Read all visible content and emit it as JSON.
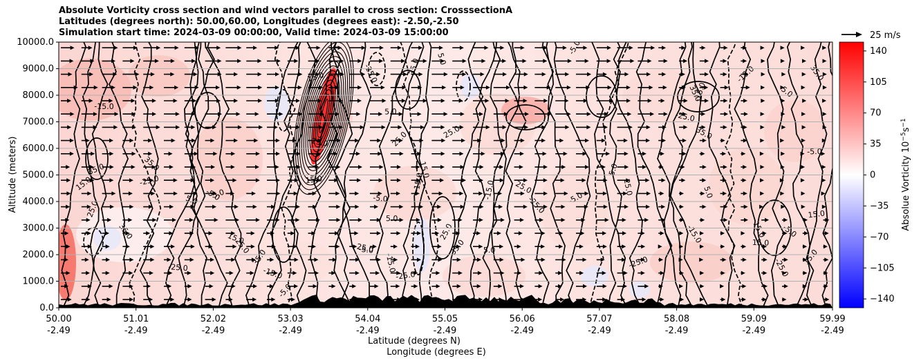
{
  "chart_data": {
    "type": "heatmap",
    "title_lines": [
      "Absolute Vorticity cross section and wind vectors parallel to cross section: CrosssectionA",
      "Latitudes (degrees north): 50.00,60.00, Longitudes (degrees east): -2.50,-2.50",
      "Simulation start time: 2024-03-09 00:00:00, Valid time: 2024-03-09 15:00:00"
    ],
    "xlabel_line1": "Latitude (degrees N)",
    "xlabel_line2": "Longitude (degrees E)",
    "ylabel": "Altitude (meters)",
    "ylim": [
      0,
      10000
    ],
    "y_ticks": [
      "0.0",
      "1000.0",
      "2000.0",
      "3000.0",
      "4000.0",
      "5000.0",
      "6000.0",
      "7000.0",
      "8000.0",
      "9000.0",
      "10000.0"
    ],
    "x_ticks": [
      {
        "lat": "50.00",
        "lon": "-2.49"
      },
      {
        "lat": "51.01",
        "lon": "-2.49"
      },
      {
        "lat": "52.02",
        "lon": "-2.49"
      },
      {
        "lat": "53.03",
        "lon": "-2.49"
      },
      {
        "lat": "54.04",
        "lon": "-2.49"
      },
      {
        "lat": "55.05",
        "lon": "-2.49"
      },
      {
        "lat": "56.06",
        "lon": "-2.49"
      },
      {
        "lat": "57.07",
        "lon": "-2.49"
      },
      {
        "lat": "58.08",
        "lon": "-2.49"
      },
      {
        "lat": "59.09",
        "lon": "-2.49"
      },
      {
        "lat": "59.99",
        "lon": "-2.49"
      }
    ],
    "colorbar": {
      "label": "Absolue Vorticity 10",
      "label_exponent": "−5",
      "label_unit": "s",
      "label_unit_exponent": "−1",
      "range": [
        -150,
        150
      ],
      "ticks": [
        "140",
        "105",
        "70",
        "35",
        "0",
        "−35",
        "−70",
        "−105",
        "−140"
      ],
      "cmap": "bwr"
    },
    "quiver_key": "25 m/s",
    "contour_labels": [
      "5.0",
      "15.0",
      "25.0",
      "35.0",
      "-5.0",
      "-15.0",
      "-25.0"
    ],
    "grid": true
  }
}
